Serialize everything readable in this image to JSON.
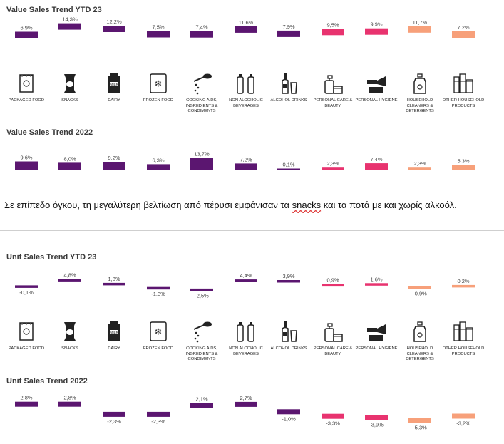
{
  "categories": [
    {
      "label": "PACKAGED FOOD",
      "icon": "packaged-food-icon"
    },
    {
      "label": "SNACKS",
      "icon": "snacks-icon"
    },
    {
      "label": "DAIRY",
      "icon": "dairy-icon"
    },
    {
      "label": "FROZEN FOOD",
      "icon": "frozen-food-icon"
    },
    {
      "label": "COOKING AIDS, INGREDIENTS & CONDIMENTS",
      "icon": "cooking-aids-icon"
    },
    {
      "label": "NON ALCOHOLIC BEVERAGES",
      "icon": "non-alcoholic-beverages-icon"
    },
    {
      "label": "ALCOHOL DRINKS",
      "icon": "alcohol-drinks-icon"
    },
    {
      "label": "PERSONAL CARE & BEAUTY",
      "icon": "personal-care-icon"
    },
    {
      "label": "PERSONAL HYGIENE",
      "icon": "personal-hygiene-icon"
    },
    {
      "label": "HOUSEHOLD CLEANERS & DETERGENTS",
      "icon": "household-cleaners-icon"
    },
    {
      "label": "OTHER HOUSEHOLD PRODUCTS",
      "icon": "other-household-icon"
    }
  ],
  "colors": [
    "#5b1670",
    "#5b1670",
    "#5b1670",
    "#5b1670",
    "#5b1670",
    "#5b1670",
    "#5b1670",
    "#e8336f",
    "#e8336f",
    "#f7a07a",
    "#f7a07a"
  ],
  "paragraph": {
    "before": "Σε επίπεδο όγκου, τη μεγαλύτερη βελτίωση από πέρυσι εμφάνισαν τα ",
    "highlight": "snacks",
    "after": " και τα ποτά με και χωρίς αλκοόλ."
  },
  "chart_data": [
    {
      "type": "bar",
      "title": "Value Sales Trend YTD 23",
      "categories": [
        "PACKAGED FOOD",
        "SNACKS",
        "DAIRY",
        "FROZEN FOOD",
        "COOKING AIDS, INGREDIENTS & CONDIMENTS",
        "NON ALCOHOLIC BEVERAGES",
        "ALCOHOL DRINKS",
        "PERSONAL CARE & BEAUTY",
        "PERSONAL HYGIENE",
        "HOUSEHOLD CLEANERS & DETERGENTS",
        "OTHER HOUSEHOLD PRODUCTS"
      ],
      "values": [
        6.9,
        14.3,
        12.2,
        7.5,
        7.4,
        11.6,
        7.9,
        9.5,
        9.9,
        11.7,
        7.2
      ],
      "labels": [
        "6,9%",
        "14,3%",
        "12,2%",
        "7,5%",
        "7,4%",
        "11,6%",
        "7,9%",
        "9,5%",
        "9,9%",
        "11,7%",
        "7,2%"
      ]
    },
    {
      "type": "bar",
      "title": "Value Sales Trend 2022",
      "categories": [
        "PACKAGED FOOD",
        "SNACKS",
        "DAIRY",
        "FROZEN FOOD",
        "COOKING AIDS, INGREDIENTS & CONDIMENTS",
        "NON ALCOHOLIC BEVERAGES",
        "ALCOHOL DRINKS",
        "PERSONAL CARE & BEAUTY",
        "PERSONAL HYGIENE",
        "HOUSEHOLD CLEANERS & DETERGENTS",
        "OTHER HOUSEHOLD PRODUCTS"
      ],
      "values": [
        9.6,
        8.0,
        9.2,
        6.3,
        13.7,
        7.2,
        0.1,
        2.3,
        7.4,
        2.3,
        5.3
      ],
      "labels": [
        "9,6%",
        "8,0%",
        "9,2%",
        "6,3%",
        "13,7%",
        "7,2%",
        "0,1%",
        "2,3%",
        "7,4%",
        "2,3%",
        "5,3%"
      ]
    },
    {
      "type": "bar",
      "title": "Unit Sales Trend YTD 23",
      "categories": [
        "PACKAGED FOOD",
        "SNACKS",
        "DAIRY",
        "FROZEN FOOD",
        "COOKING AIDS, INGREDIENTS & CONDIMENTS",
        "NON ALCOHOLIC BEVERAGES",
        "ALCOHOL DRINKS",
        "PERSONAL CARE & BEAUTY",
        "PERSONAL HYGIENE",
        "HOUSEHOLD CLEANERS & DETERGENTS",
        "OTHER HOUSEHOLD PRODUCTS"
      ],
      "values": [
        -0.1,
        4.8,
        1.8,
        -1.3,
        -2.5,
        4.4,
        3.9,
        0.9,
        1.6,
        -0.9,
        0.2
      ],
      "labels": [
        "-0,1%",
        "4,8%",
        "1,8%",
        "-1,3%",
        "-2,5%",
        "4,4%",
        "3,9%",
        "0,9%",
        "1,6%",
        "-0,9%",
        "0,2%"
      ]
    },
    {
      "type": "bar",
      "title": "Unit Sales Trend 2022",
      "categories": [
        "PACKAGED FOOD",
        "SNACKS",
        "DAIRY",
        "FROZEN FOOD",
        "COOKING AIDS, INGREDIENTS & CONDIMENTS",
        "NON ALCOHOLIC BEVERAGES",
        "ALCOHOL DRINKS",
        "PERSONAL CARE & BEAUTY",
        "PERSONAL HYGIENE",
        "HOUSEHOLD CLEANERS & DETERGENTS",
        "OTHER HOUSEHOLD PRODUCTS"
      ],
      "values": [
        2.8,
        2.8,
        -2.3,
        -2.3,
        2.1,
        2.7,
        -1.0,
        -3.3,
        -3.9,
        -5.3,
        -3.2
      ],
      "labels": [
        "2,8%",
        "2,8%",
        "-2,3%",
        "-2,3%",
        "2,1%",
        "2,7%",
        "-1,0%",
        "-3,3%",
        "-3,9%",
        "-5,3%",
        "-3,2%"
      ]
    }
  ]
}
